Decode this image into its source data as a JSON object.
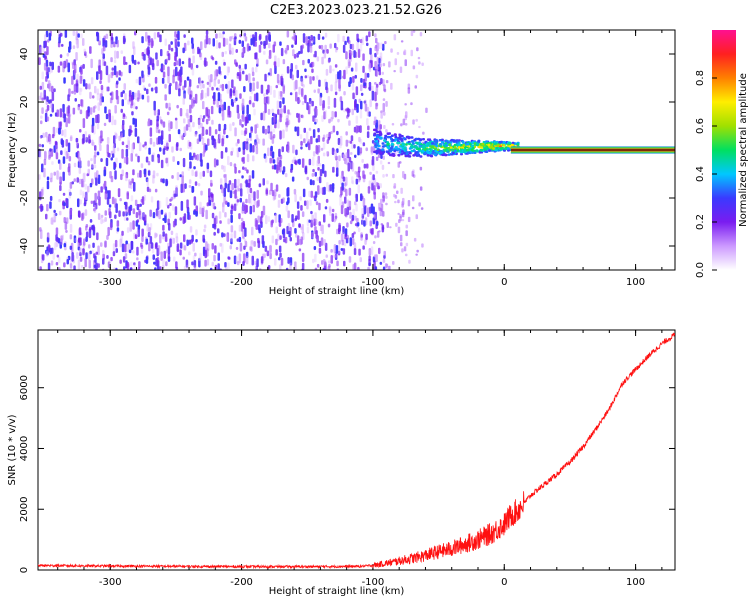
{
  "title": "C2E3.2023.023.21.52.G26",
  "chart_data": [
    {
      "type": "heatmap",
      "title": "",
      "xlabel": "Height of straight line (km)",
      "ylabel": "Frequency (Hz)",
      "xlim": [
        -355,
        130
      ],
      "ylim": [
        -50,
        50
      ],
      "xticks": [
        -300,
        -200,
        -100,
        0,
        100
      ],
      "yticks": [
        -40,
        -20,
        0,
        20,
        40
      ],
      "colorbar": {
        "label": "Normalized spectral amplitude",
        "range": [
          0,
          1
        ],
        "ticks": [
          0.0,
          0.2,
          0.4,
          0.6,
          0.8
        ],
        "colors": [
          "#ffffff",
          "#cc99ff",
          "#7a1cf0",
          "#3a3aff",
          "#00c8ff",
          "#00e060",
          "#a0e000",
          "#ffee00",
          "#ff8000",
          "#ff2020",
          "#ff1090"
        ]
      },
      "regions": [
        {
          "name": "noise",
          "x": [
            -355,
            -92
          ],
          "y": [
            -50,
            50
          ],
          "amplitude": 0.15
        },
        {
          "name": "sparse-noise",
          "x": [
            -100,
            -60
          ],
          "y": [
            -50,
            50
          ],
          "amplitude": 0.05
        },
        {
          "name": "signal-onset",
          "x": [
            -100,
            10
          ],
          "y_center": [
            4,
            2
          ],
          "spread_hz": 5,
          "amplitude": 0.45
        },
        {
          "name": "carrier",
          "x": [
            5,
            130
          ],
          "y_center": [
            0,
            0
          ],
          "spread_hz": 1.5,
          "amplitude": 0.95
        }
      ]
    },
    {
      "type": "line",
      "title": "",
      "xlabel": "Height of straight line (km)",
      "ylabel": "SNR (10 * v/v)",
      "xlim": [
        -355,
        130
      ],
      "ylim": [
        0,
        7900
      ],
      "xticks": [
        -300,
        -200,
        -100,
        0,
        100
      ],
      "yticks": [
        0,
        2000,
        4000,
        6000
      ],
      "color": "#ff1010",
      "series": [
        {
          "x": [
            -355,
            -300,
            -250,
            -200,
            -150,
            -110,
            -100,
            -90,
            -80,
            -70,
            -60,
            -50,
            -40,
            -30,
            -20,
            -10,
            -5,
            0,
            5,
            10,
            15,
            20,
            30,
            40,
            50,
            60,
            70,
            80,
            90,
            100,
            110,
            120,
            130
          ],
          "values": [
            150,
            130,
            120,
            110,
            110,
            120,
            150,
            220,
            300,
            380,
            480,
            600,
            700,
            850,
            1000,
            1200,
            1350,
            1500,
            1800,
            1950,
            2200,
            2450,
            2800,
            3150,
            3550,
            4050,
            4650,
            5300,
            6150,
            6600,
            7050,
            7450,
            7750
          ]
        }
      ]
    }
  ]
}
